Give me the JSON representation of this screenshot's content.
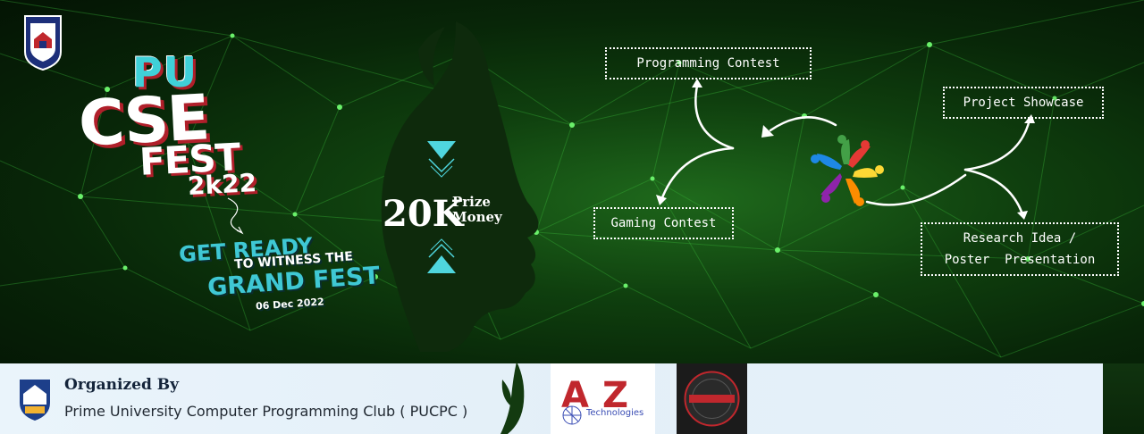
{
  "event": {
    "title_line1": "PU",
    "title_line2": "CSE",
    "title_line3": "FEST",
    "title_line4": "2k22",
    "tagline_line1": "GET READY",
    "tagline_line2": "TO WITNESS THE",
    "tagline_line3": "GRAND FEST",
    "date": "06 Dec 2022"
  },
  "prize": {
    "amount": "20K",
    "label_line1": "Prize",
    "label_line2": "Money"
  },
  "activities": {
    "programming": "Programming Contest",
    "project": "Project Showcase",
    "gaming": "Gaming Contest",
    "research": "Research Idea /\nPoster  Presentation"
  },
  "footer": {
    "organized_label": "Organized By",
    "organizer": "Prime University Computer Programming Club ( PUCPC )",
    "sponsor1_letter_a": "A",
    "sponsor1_letter_z": "Z",
    "sponsor1_tagline": "Technologies"
  },
  "colors": {
    "accent_cyan": "#3fd0d8",
    "accent_red": "#b01f2a",
    "bg_green": "#0f3f0e"
  }
}
